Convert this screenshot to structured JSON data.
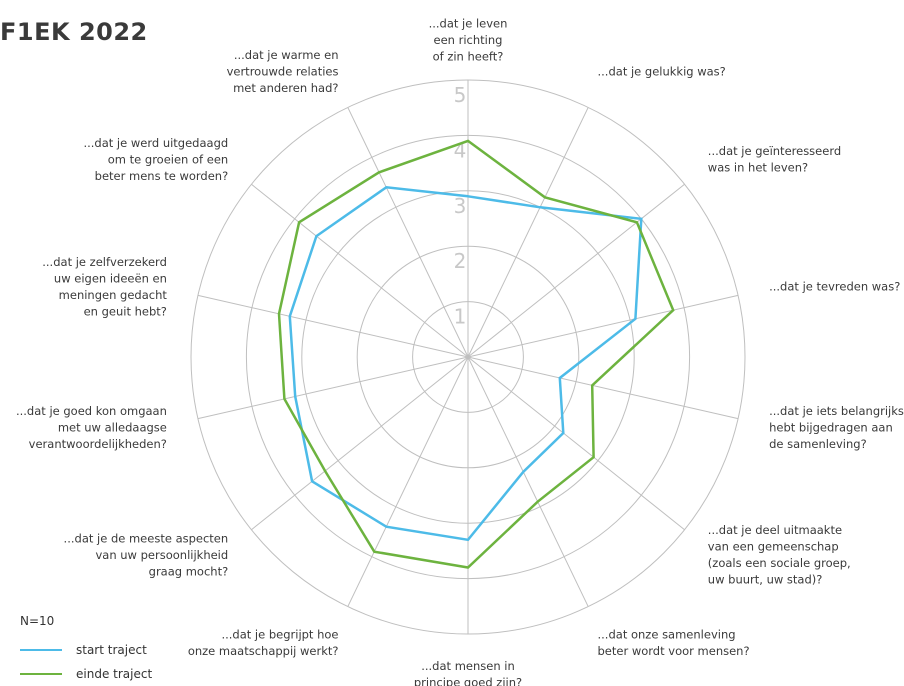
{
  "title": "F1EK 2022",
  "n_label": "N=10",
  "colors": {
    "start": "#4dbbe8",
    "end": "#6db33f",
    "grid": "#bfbfbf"
  },
  "chart_data": {
    "type": "radar",
    "title": "F1EK 2022",
    "rmax": 5,
    "scale_ticks": [
      "1",
      "2",
      "3",
      "4",
      "5"
    ],
    "grid": true,
    "legend": "bottom-left",
    "axes": [
      [
        "...dat je leven",
        "een richting",
        "of zin heeft?"
      ],
      [
        "...dat je gelukkig was?"
      ],
      [
        "...dat je geïnteresseerd",
        "was in het leven?"
      ],
      [
        "...dat je tevreden was?"
      ],
      [
        "...dat je iets belangrijks",
        "hebt bijgedragen aan",
        "de samenleving?"
      ],
      [
        "...dat je deel uitmaakte",
        "van een gemeenschap",
        "(zoals een sociale groep,",
        "uw buurt, uw stad)?"
      ],
      [
        "...dat onze samenleving",
        "beter wordt voor mensen?"
      ],
      [
        "...dat mensen in",
        "principe goed zijn?"
      ],
      [
        "...dat je begrijpt hoe",
        "onze maatschappij werkt?"
      ],
      [
        "...dat je de meeste aspecten",
        "van uw persoonlijkheid",
        "graag mocht?"
      ],
      [
        "...dat je goed kon omgaan",
        "met uw alledaagse",
        "verantwoordelijkheden?"
      ],
      [
        "...dat je zelfverzekerd",
        "uw eigen ideeën en",
        "meningen gedacht",
        "en geuit hebt?"
      ],
      [
        "...dat je werd uitgedaagd",
        "om te groeien of een",
        "beter mens te worden?"
      ],
      [
        "...dat je warme en",
        "vertrouwde relaties",
        "met anderen had?"
      ]
    ],
    "series": [
      {
        "name": "start traject",
        "values": [
          2.9,
          3.0,
          4.0,
          3.1,
          1.7,
          2.2,
          2.3,
          3.3,
          3.4,
          3.6,
          3.2,
          3.3,
          3.5,
          3.4
        ]
      },
      {
        "name": "einde traject",
        "values": [
          3.9,
          3.2,
          3.9,
          3.8,
          2.3,
          2.9,
          2.9,
          3.8,
          3.9,
          3.3,
          3.4,
          3.5,
          3.9,
          3.7
        ]
      }
    ]
  }
}
